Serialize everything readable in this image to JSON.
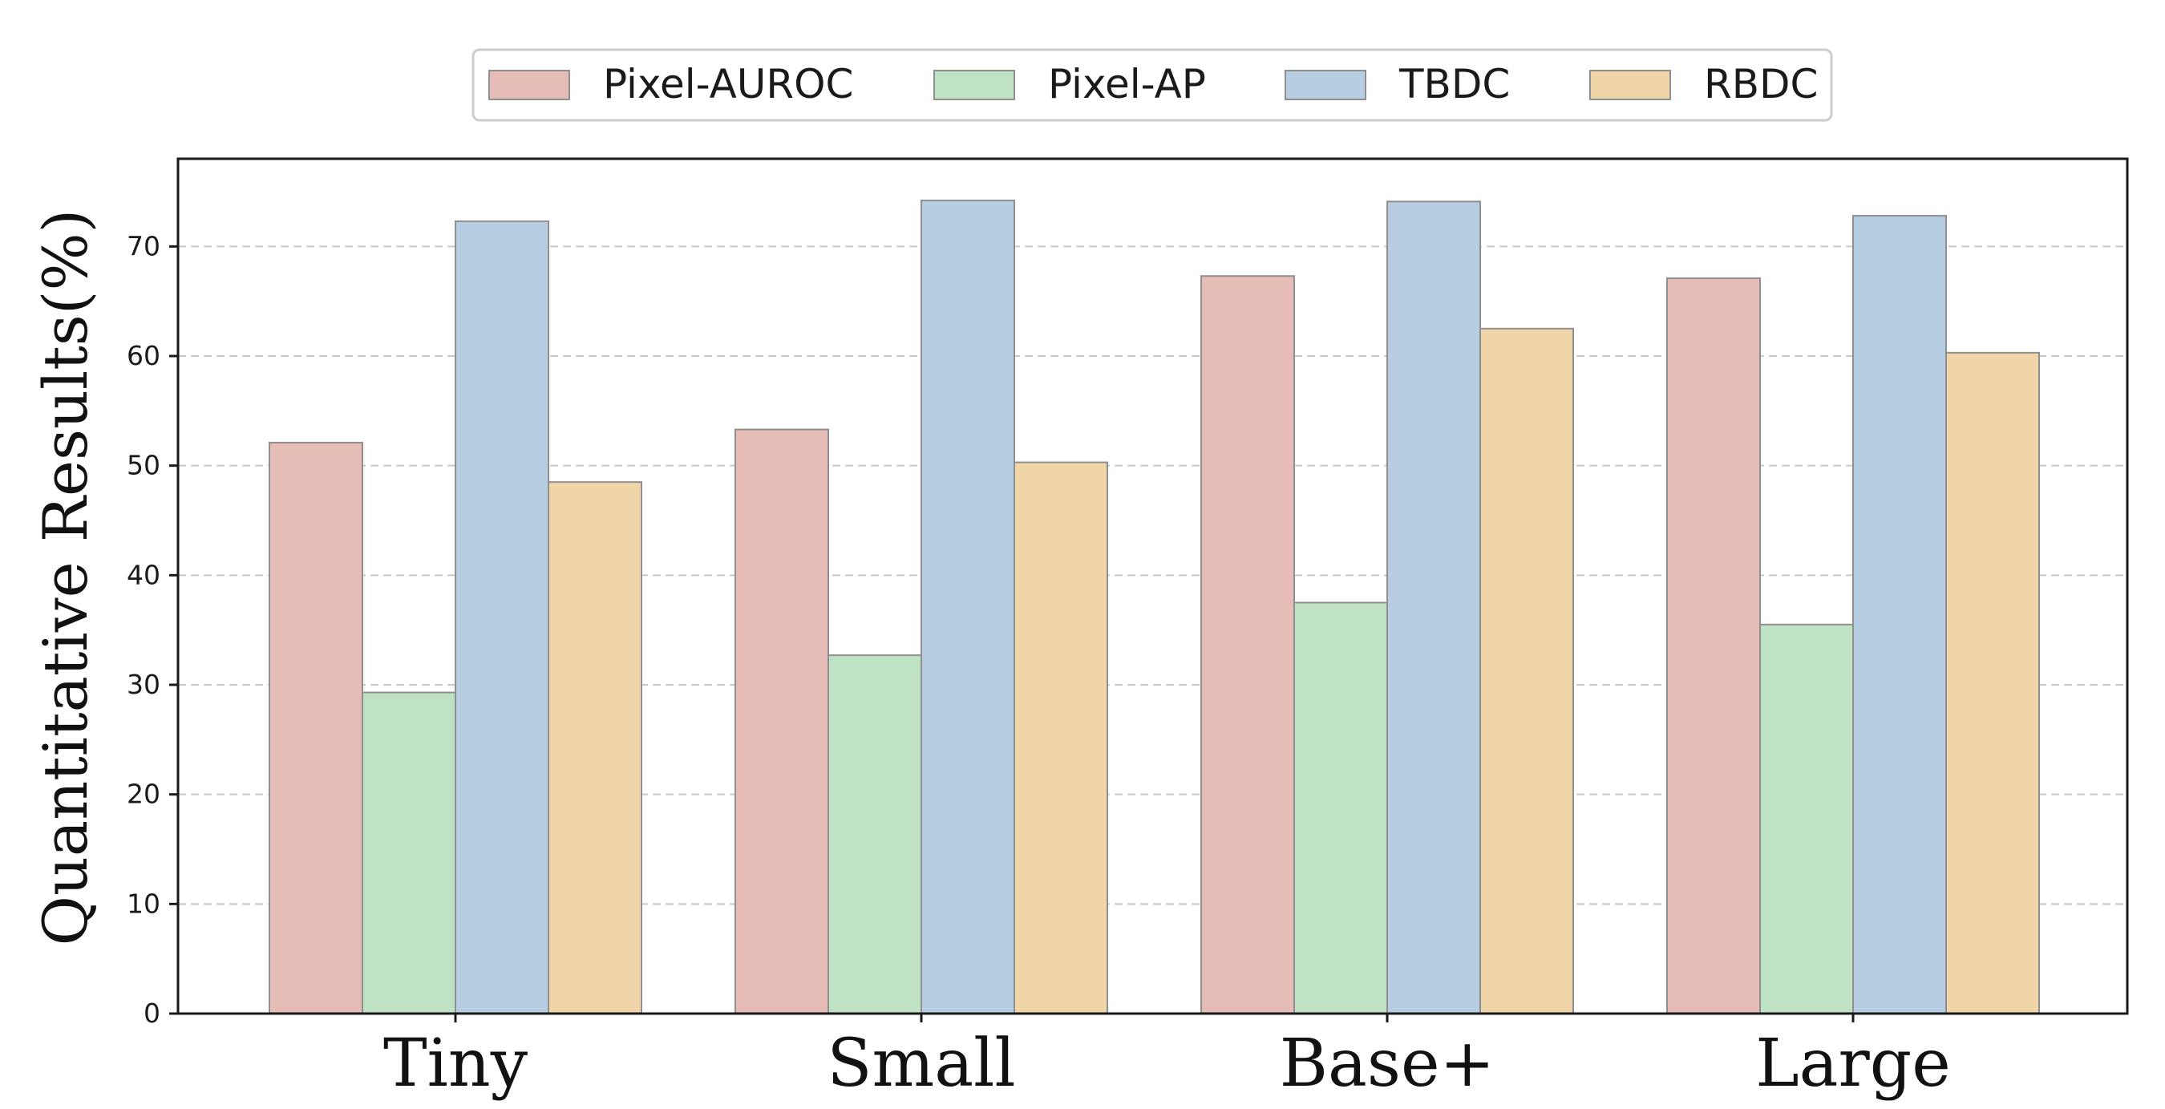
{
  "chart_data": {
    "type": "bar",
    "categories": [
      "Tiny",
      "Small",
      "Base+",
      "Large"
    ],
    "series": [
      {
        "name": "Pixel-AUROC",
        "values": [
          52.1,
          53.3,
          67.3,
          67.1
        ],
        "color": "#e6bcb6"
      },
      {
        "name": "Pixel-AP",
        "values": [
          29.3,
          32.7,
          37.5,
          35.5
        ],
        "color": "#c0e2c4"
      },
      {
        "name": "TBDC",
        "values": [
          72.3,
          74.2,
          74.1,
          72.8
        ],
        "color": "#b7cde1"
      },
      {
        "name": "RBDC",
        "values": [
          48.5,
          50.3,
          62.5,
          60.3
        ],
        "color": "#f0d5a8"
      }
    ],
    "title": "",
    "xlabel": "",
    "ylabel": "Quantitative Results(%)",
    "ylim": [
      0,
      78
    ],
    "yticks": [
      "0",
      "10",
      "20",
      "30",
      "40",
      "50",
      "60",
      "70"
    ],
    "grid": "horizontal-dashed",
    "legend_position": "top-center"
  }
}
